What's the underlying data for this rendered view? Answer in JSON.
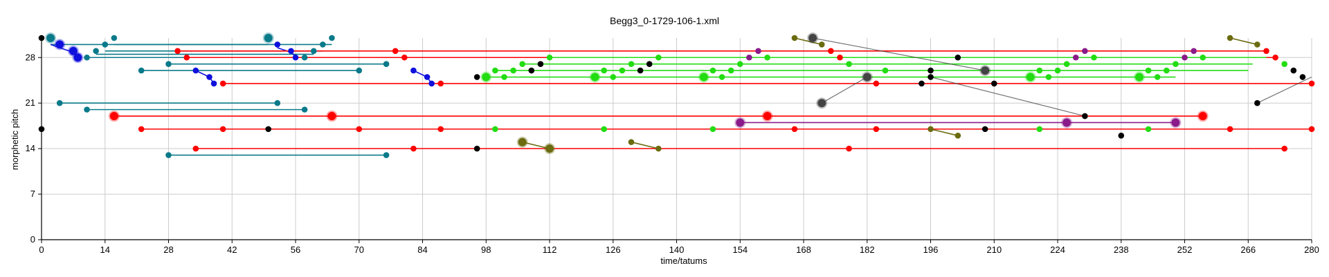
{
  "chart_data": {
    "type": "scatter",
    "title": "Begg3_0-1729-106-1.xml",
    "xlabel": "time/tatums",
    "ylabel": "morphetic pitch",
    "xlim": [
      0,
      280
    ],
    "ylim": [
      0,
      31
    ],
    "xticks": [
      0,
      14,
      28,
      42,
      56,
      70,
      84,
      98,
      112,
      126,
      140,
      154,
      168,
      182,
      196,
      210,
      224,
      238,
      252,
      266,
      280
    ],
    "yticks": [
      0,
      7,
      14,
      21,
      28
    ],
    "grid": true,
    "colors": {
      "black": "#000000",
      "teal": "#0a7a8a",
      "blue": "#1010dd",
      "red": "#ff0000",
      "green": "#22dd11",
      "olive": "#6b6b10",
      "purple": "#8a1a8a",
      "dark_grey": "#444444"
    },
    "segments": [
      {
        "color": "teal",
        "x1": 2,
        "y1": 30,
        "x2": 50,
        "y2": 30
      },
      {
        "color": "teal",
        "x1": 16,
        "y1": 30,
        "x2": 64,
        "y2": 30
      },
      {
        "color": "teal",
        "x1": 14,
        "y1": 29,
        "x2": 62,
        "y2": 29
      },
      {
        "color": "teal",
        "x1": 12,
        "y1": 28.5,
        "x2": 60,
        "y2": 28.5
      },
      {
        "color": "teal",
        "x1": 10,
        "y1": 28,
        "x2": 58,
        "y2": 28
      },
      {
        "color": "teal",
        "x1": 28,
        "y1": 27,
        "x2": 76,
        "y2": 27
      },
      {
        "color": "teal",
        "x1": 22,
        "y1": 26,
        "x2": 70,
        "y2": 26
      },
      {
        "color": "teal",
        "x1": 4,
        "y1": 21,
        "x2": 52,
        "y2": 21
      },
      {
        "color": "teal",
        "x1": 10,
        "y1": 20,
        "x2": 58,
        "y2": 20
      },
      {
        "color": "teal",
        "x1": 28,
        "y1": 13,
        "x2": 76,
        "y2": 13
      },
      {
        "color": "blue",
        "x1": 2,
        "y1": 30,
        "x2": 4,
        "y2": 29.5
      },
      {
        "color": "blue",
        "x1": 4,
        "y1": 29.5,
        "x2": 7,
        "y2": 28.8
      },
      {
        "color": "blue",
        "x1": 7,
        "y1": 28.8,
        "x2": 8,
        "y2": 28.2
      },
      {
        "color": "blue",
        "x1": 52,
        "y1": 29.5,
        "x2": 55,
        "y2": 28.8
      },
      {
        "color": "blue",
        "x1": 55,
        "y1": 28.8,
        "x2": 56,
        "y2": 28.2
      },
      {
        "color": "blue",
        "x1": 34,
        "y1": 26,
        "x2": 37,
        "y2": 25
      },
      {
        "color": "blue",
        "x1": 37,
        "y1": 25,
        "x2": 38,
        "y2": 24
      },
      {
        "color": "blue",
        "x1": 82,
        "y1": 26,
        "x2": 85,
        "y2": 25
      },
      {
        "color": "blue",
        "x1": 85,
        "y1": 25,
        "x2": 86,
        "y2": 24
      },
      {
        "color": "red",
        "x1": 30,
        "y1": 29,
        "x2": 270,
        "y2": 29
      },
      {
        "color": "red",
        "x1": 32,
        "y1": 28,
        "x2": 272,
        "y2": 28
      },
      {
        "color": "red",
        "x1": 40,
        "y1": 24,
        "x2": 280,
        "y2": 24
      },
      {
        "color": "red",
        "x1": 16,
        "y1": 19,
        "x2": 256,
        "y2": 19
      },
      {
        "color": "red",
        "x1": 22,
        "y1": 17,
        "x2": 280,
        "y2": 17
      },
      {
        "color": "red",
        "x1": 34,
        "y1": 14,
        "x2": 274,
        "y2": 14
      },
      {
        "color": "green",
        "x1": 98,
        "y1": 25,
        "x2": 250,
        "y2": 25
      },
      {
        "color": "green",
        "x1": 100,
        "y1": 26,
        "x2": 266,
        "y2": 26
      },
      {
        "color": "green",
        "x1": 106,
        "y1": 27,
        "x2": 267,
        "y2": 27
      },
      {
        "color": "green",
        "x1": 112,
        "y1": 28,
        "x2": 270,
        "y2": 28
      },
      {
        "color": "purple",
        "x1": 154,
        "y1": 18,
        "x2": 250,
        "y2": 18
      },
      {
        "color": "olive",
        "x1": 106,
        "y1": 15,
        "x2": 112,
        "y2": 14
      },
      {
        "color": "olive",
        "x1": 130,
        "y1": 15,
        "x2": 136,
        "y2": 14
      },
      {
        "color": "olive",
        "x1": 196,
        "y1": 17,
        "x2": 202,
        "y2": 16
      },
      {
        "color": "olive",
        "x1": 166,
        "y1": 31,
        "x2": 172,
        "y2": 30
      },
      {
        "color": "olive",
        "x1": 262,
        "y1": 31,
        "x2": 268,
        "y2": 30
      },
      {
        "color": "dark_grey",
        "x1": 170,
        "y1": 31,
        "x2": 208,
        "y2": 26
      },
      {
        "color": "dark_grey",
        "x1": 172,
        "y1": 21,
        "x2": 182,
        "y2": 25
      },
      {
        "color": "dark_grey",
        "x1": 196,
        "y1": 25,
        "x2": 230,
        "y2": 19
      },
      {
        "color": "dark_grey",
        "x1": 268,
        "y1": 21,
        "x2": 280,
        "y2": 25
      }
    ],
    "points": [
      {
        "color": "black",
        "x": 0,
        "y": 31,
        "s": 1
      },
      {
        "color": "black",
        "x": 0,
        "y": 17,
        "s": 1
      },
      {
        "color": "teal",
        "x": 2,
        "y": 31,
        "s": 2
      },
      {
        "color": "teal",
        "x": 16,
        "y": 31,
        "s": 1
      },
      {
        "color": "teal",
        "x": 50,
        "y": 31,
        "s": 2
      },
      {
        "color": "teal",
        "x": 64,
        "y": 31,
        "s": 1
      },
      {
        "color": "teal",
        "x": 14,
        "y": 30,
        "s": 1
      },
      {
        "color": "teal",
        "x": 62,
        "y": 30,
        "s": 1
      },
      {
        "color": "teal",
        "x": 12,
        "y": 29,
        "s": 1
      },
      {
        "color": "teal",
        "x": 60,
        "y": 29,
        "s": 1
      },
      {
        "color": "teal",
        "x": 10,
        "y": 28,
        "s": 1
      },
      {
        "color": "teal",
        "x": 58,
        "y": 28,
        "s": 1
      },
      {
        "color": "teal",
        "x": 28,
        "y": 27,
        "s": 1
      },
      {
        "color": "teal",
        "x": 76,
        "y": 27,
        "s": 1
      },
      {
        "color": "teal",
        "x": 22,
        "y": 26,
        "s": 1
      },
      {
        "color": "teal",
        "x": 70,
        "y": 26,
        "s": 1
      },
      {
        "color": "teal",
        "x": 4,
        "y": 21,
        "s": 1
      },
      {
        "color": "teal",
        "x": 52,
        "y": 21,
        "s": 1
      },
      {
        "color": "teal",
        "x": 10,
        "y": 20,
        "s": 1
      },
      {
        "color": "teal",
        "x": 58,
        "y": 20,
        "s": 1
      },
      {
        "color": "teal",
        "x": 28,
        "y": 13,
        "s": 1
      },
      {
        "color": "teal",
        "x": 76,
        "y": 13,
        "s": 1
      },
      {
        "color": "blue",
        "x": 4,
        "y": 30,
        "s": 2
      },
      {
        "color": "blue",
        "x": 7,
        "y": 29,
        "s": 2
      },
      {
        "color": "blue",
        "x": 8,
        "y": 28,
        "s": 2
      },
      {
        "color": "blue",
        "x": 52,
        "y": 30,
        "s": 1
      },
      {
        "color": "blue",
        "x": 55,
        "y": 29,
        "s": 1
      },
      {
        "color": "blue",
        "x": 56,
        "y": 28,
        "s": 1
      },
      {
        "color": "blue",
        "x": 34,
        "y": 26,
        "s": 1
      },
      {
        "color": "blue",
        "x": 37,
        "y": 25,
        "s": 1
      },
      {
        "color": "blue",
        "x": 38,
        "y": 24,
        "s": 1
      },
      {
        "color": "blue",
        "x": 82,
        "y": 26,
        "s": 1
      },
      {
        "color": "blue",
        "x": 85,
        "y": 25,
        "s": 1
      },
      {
        "color": "blue",
        "x": 86,
        "y": 24,
        "s": 1
      },
      {
        "color": "red",
        "x": 30,
        "y": 29,
        "s": 1
      },
      {
        "color": "red",
        "x": 78,
        "y": 29,
        "s": 1
      },
      {
        "color": "red",
        "x": 174,
        "y": 29,
        "s": 1
      },
      {
        "color": "red",
        "x": 270,
        "y": 29,
        "s": 1
      },
      {
        "color": "red",
        "x": 32,
        "y": 28,
        "s": 1
      },
      {
        "color": "red",
        "x": 80,
        "y": 28,
        "s": 1
      },
      {
        "color": "red",
        "x": 176,
        "y": 28,
        "s": 1
      },
      {
        "color": "red",
        "x": 272,
        "y": 28,
        "s": 1
      },
      {
        "color": "red",
        "x": 40,
        "y": 24,
        "s": 1
      },
      {
        "color": "red",
        "x": 88,
        "y": 24,
        "s": 1
      },
      {
        "color": "red",
        "x": 184,
        "y": 24,
        "s": 1
      },
      {
        "color": "red",
        "x": 280,
        "y": 24,
        "s": 1
      },
      {
        "color": "red",
        "x": 16,
        "y": 19,
        "s": 2
      },
      {
        "color": "red",
        "x": 64,
        "y": 19,
        "s": 2
      },
      {
        "color": "red",
        "x": 160,
        "y": 19,
        "s": 2
      },
      {
        "color": "red",
        "x": 256,
        "y": 19,
        "s": 2
      },
      {
        "color": "red",
        "x": 22,
        "y": 17,
        "s": 1
      },
      {
        "color": "red",
        "x": 40,
        "y": 17,
        "s": 1
      },
      {
        "color": "red",
        "x": 70,
        "y": 17,
        "s": 1
      },
      {
        "color": "red",
        "x": 88,
        "y": 17,
        "s": 1
      },
      {
        "color": "red",
        "x": 166,
        "y": 17,
        "s": 1
      },
      {
        "color": "red",
        "x": 184,
        "y": 17,
        "s": 1
      },
      {
        "color": "red",
        "x": 262,
        "y": 17,
        "s": 1
      },
      {
        "color": "red",
        "x": 280,
        "y": 17,
        "s": 1
      },
      {
        "color": "red",
        "x": 34,
        "y": 14,
        "s": 1
      },
      {
        "color": "red",
        "x": 82,
        "y": 14,
        "s": 1
      },
      {
        "color": "red",
        "x": 178,
        "y": 14,
        "s": 1
      },
      {
        "color": "red",
        "x": 274,
        "y": 14,
        "s": 1
      },
      {
        "color": "green",
        "x": 98,
        "y": 25,
        "s": 2
      },
      {
        "color": "green",
        "x": 102,
        "y": 25,
        "s": 1
      },
      {
        "color": "green",
        "x": 122,
        "y": 25,
        "s": 2
      },
      {
        "color": "green",
        "x": 126,
        "y": 25,
        "s": 1
      },
      {
        "color": "green",
        "x": 146,
        "y": 25,
        "s": 2
      },
      {
        "color": "green",
        "x": 150,
        "y": 25,
        "s": 1
      },
      {
        "color": "green",
        "x": 218,
        "y": 25,
        "s": 2
      },
      {
        "color": "green",
        "x": 222,
        "y": 25,
        "s": 1
      },
      {
        "color": "green",
        "x": 242,
        "y": 25,
        "s": 2
      },
      {
        "color": "green",
        "x": 246,
        "y": 25,
        "s": 1
      },
      {
        "color": "green",
        "x": 100,
        "y": 26,
        "s": 1
      },
      {
        "color": "green",
        "x": 104,
        "y": 26,
        "s": 1
      },
      {
        "color": "green",
        "x": 124,
        "y": 26,
        "s": 1
      },
      {
        "color": "green",
        "x": 128,
        "y": 26,
        "s": 1
      },
      {
        "color": "green",
        "x": 148,
        "y": 26,
        "s": 1
      },
      {
        "color": "green",
        "x": 152,
        "y": 26,
        "s": 1
      },
      {
        "color": "green",
        "x": 186,
        "y": 26,
        "s": 1
      },
      {
        "color": "green",
        "x": 220,
        "y": 26,
        "s": 1
      },
      {
        "color": "green",
        "x": 224,
        "y": 26,
        "s": 1
      },
      {
        "color": "green",
        "x": 244,
        "y": 26,
        "s": 1
      },
      {
        "color": "green",
        "x": 248,
        "y": 26,
        "s": 1
      },
      {
        "color": "green",
        "x": 106,
        "y": 27,
        "s": 1
      },
      {
        "color": "green",
        "x": 130,
        "y": 27,
        "s": 1
      },
      {
        "color": "green",
        "x": 154,
        "y": 27,
        "s": 1
      },
      {
        "color": "green",
        "x": 178,
        "y": 27,
        "s": 1
      },
      {
        "color": "green",
        "x": 226,
        "y": 27,
        "s": 1
      },
      {
        "color": "green",
        "x": 250,
        "y": 27,
        "s": 1
      },
      {
        "color": "green",
        "x": 274,
        "y": 27,
        "s": 1
      },
      {
        "color": "green",
        "x": 112,
        "y": 28,
        "s": 1
      },
      {
        "color": "green",
        "x": 136,
        "y": 28,
        "s": 1
      },
      {
        "color": "green",
        "x": 160,
        "y": 28,
        "s": 1
      },
      {
        "color": "green",
        "x": 232,
        "y": 28,
        "s": 1
      },
      {
        "color": "green",
        "x": 256,
        "y": 28,
        "s": 1
      },
      {
        "color": "green",
        "x": 100,
        "y": 17,
        "s": 1
      },
      {
        "color": "green",
        "x": 124,
        "y": 17,
        "s": 1
      },
      {
        "color": "green",
        "x": 148,
        "y": 17,
        "s": 1
      },
      {
        "color": "green",
        "x": 220,
        "y": 17,
        "s": 1
      },
      {
        "color": "green",
        "x": 244,
        "y": 17,
        "s": 1
      },
      {
        "color": "black",
        "x": 96,
        "y": 25,
        "s": 1
      },
      {
        "color": "black",
        "x": 108,
        "y": 26,
        "s": 1
      },
      {
        "color": "black",
        "x": 110,
        "y": 27,
        "s": 1
      },
      {
        "color": "black",
        "x": 132,
        "y": 26,
        "s": 1
      },
      {
        "color": "black",
        "x": 134,
        "y": 27,
        "s": 1
      },
      {
        "color": "black",
        "x": 196,
        "y": 26,
        "s": 1
      },
      {
        "color": "black",
        "x": 202,
        "y": 28,
        "s": 1
      },
      {
        "color": "black",
        "x": 210,
        "y": 24,
        "s": 1
      },
      {
        "color": "black",
        "x": 194,
        "y": 24,
        "s": 1
      },
      {
        "color": "black",
        "x": 196,
        "y": 25,
        "s": 1
      },
      {
        "color": "black",
        "x": 50,
        "y": 17,
        "s": 1
      },
      {
        "color": "black",
        "x": 96,
        "y": 14,
        "s": 1
      },
      {
        "color": "black",
        "x": 208,
        "y": 17,
        "s": 1
      },
      {
        "color": "black",
        "x": 230,
        "y": 19,
        "s": 1
      },
      {
        "color": "black",
        "x": 238,
        "y": 16,
        "s": 1
      },
      {
        "color": "black",
        "x": 276,
        "y": 26,
        "s": 1
      },
      {
        "color": "black",
        "x": 278,
        "y": 25,
        "s": 1
      },
      {
        "color": "black",
        "x": 268,
        "y": 21,
        "s": 1
      },
      {
        "color": "purple",
        "x": 154,
        "y": 18,
        "s": 2
      },
      {
        "color": "purple",
        "x": 226,
        "y": 18,
        "s": 2
      },
      {
        "color": "purple",
        "x": 250,
        "y": 18,
        "s": 2
      },
      {
        "color": "purple",
        "x": 156,
        "y": 28,
        "s": 1
      },
      {
        "color": "purple",
        "x": 158,
        "y": 29,
        "s": 1
      },
      {
        "color": "purple",
        "x": 228,
        "y": 28,
        "s": 1
      },
      {
        "color": "purple",
        "x": 230,
        "y": 29,
        "s": 1
      },
      {
        "color": "purple",
        "x": 252,
        "y": 28,
        "s": 1
      },
      {
        "color": "purple",
        "x": 254,
        "y": 29,
        "s": 1
      },
      {
        "color": "olive",
        "x": 106,
        "y": 15,
        "s": 2
      },
      {
        "color": "olive",
        "x": 112,
        "y": 14,
        "s": 2
      },
      {
        "color": "olive",
        "x": 130,
        "y": 15,
        "s": 1
      },
      {
        "color": "olive",
        "x": 136,
        "y": 14,
        "s": 1
      },
      {
        "color": "olive",
        "x": 196,
        "y": 17,
        "s": 1
      },
      {
        "color": "olive",
        "x": 202,
        "y": 16,
        "s": 1
      },
      {
        "color": "olive",
        "x": 166,
        "y": 31,
        "s": 1
      },
      {
        "color": "olive",
        "x": 172,
        "y": 30,
        "s": 1
      },
      {
        "color": "olive",
        "x": 262,
        "y": 31,
        "s": 1
      },
      {
        "color": "olive",
        "x": 268,
        "y": 30,
        "s": 1
      },
      {
        "color": "dark_grey",
        "x": 170,
        "y": 31,
        "s": 2
      },
      {
        "color": "dark_grey",
        "x": 208,
        "y": 26,
        "s": 2
      },
      {
        "color": "dark_grey",
        "x": 172,
        "y": 21,
        "s": 2
      },
      {
        "color": "dark_grey",
        "x": 182,
        "y": 25,
        "s": 2
      }
    ]
  }
}
